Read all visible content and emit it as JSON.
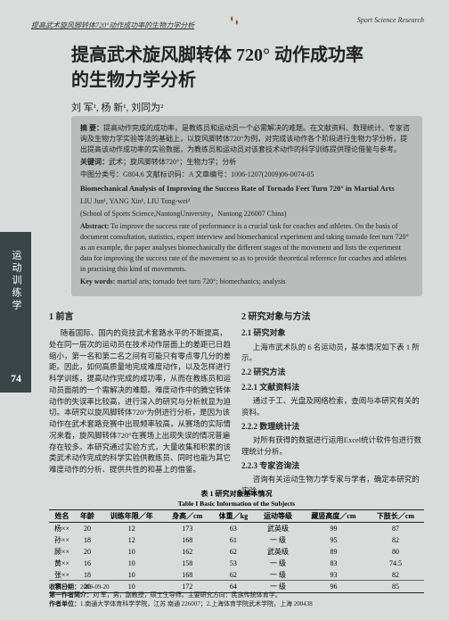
{
  "header": {
    "left": "提高武术旋风脚转体720°动作成功率的生物力学分析",
    "right": "Sport Science Research"
  },
  "title": {
    "line1": "提高武术旋风脚转体 720° 动作成功率",
    "line2": "的生物力学分析"
  },
  "authors": "刘  军¹, 杨  新¹, 刘同为²",
  "abstract": {
    "cn_label": "摘  要：",
    "cn_body": "提高动作完成的成功率，是教练员和运动员一个必需解决的难题。在文献资料、数理统计、专家咨询及生物力学实验等法的基础上，以旋风脚转体720°为例，对完成该动作各个阶段进行生物力学分析，提出提高该动作成功率的实验数据，为教练员和运动员对该套技术动作的科学训练提供理论借鉴与参考。",
    "kw_cn_label": "关键词：",
    "kw_cn_body": "武术；旋风脚转体720°；生物力学；分析",
    "class_label": "中图分类号：",
    "class_body": "G804.6      文献标识码：A      文章编号：1006-1207(2009)06-0074-05",
    "en_title": "Biomechanical Analysis of Improving the Success Rate of Tornado Feet Turn 720° in Martial Arts",
    "en_authors": "LIU Jun¹, YANG Xin¹, LIU Tong-wei²",
    "en_affil": "(School of Sports Science,NantongUniversity，Nantong 226007 China)",
    "en_abs_label": "Abstract:",
    "en_abs_body": "To improve the success rate of performance is a crucial task for coaches and athletes. On the basis of document consultation, statistics, expert interview and biomechanical experiment and taking tornado feet turn 720° as an example, the paper analyses biomechanically the different stages of the movement and lists the experiment data for improving the success rate of the movement so as to provide theoretical reference for coaches and athletes in practising this kind of movements.",
    "en_kw_label": "Key words:",
    "en_kw_body": "martial arts; tornado feet turn 720°; biomechanics; analysis"
  },
  "sidebar": "运动训练学",
  "page_number": "74",
  "sections": {
    "s1_h": "1  前言",
    "s1_p1": "随着国际、国内的竞技武术套路水平的不断提高，处在同一层次的运动员在技术动作层面上的差距已日趋缩小，第一名和第二名之间有可能只有零点零几分的差距。因此，如何高质量地完成难度动作，以及怎样进行科学训练，提高动作完成的成功率，从而在教练员和运动员面前的一个需解决的难题。难度动作中的腾空转体动作的失误率比较高，进行深入的研究与分析就显为迫切。本研究以旋风脚转体720°为例进行分析，是因为该动作在武术套路竞赛中出现频率较高，从赛场的实际情况来看，旋风脚转体720°在赛场上出现失误的情况普遍存在较多。本研究通过实验方式，大量收集和积累的该类武术动作完成的科学实验供教练员、同时也能为其它难度动作的分析、提供共性的和基上的借鉴。",
    "s2_h": "2  研究对象与方法",
    "s21_h": "2.1  研究对象",
    "s21_p": "上海市武术队的 6 名运动员，基本情况如下表 1 所示。",
    "s22_h": "2.2  研究方法",
    "s221_h": "2.2.1  文献资料法",
    "s221_p": "通过于工、光盘及网络检索，查阅与本研究有关的资料。",
    "s222_h": "2.2.2  数理统计法",
    "s222_p": "对所有获得的数据进行运用Excel统计软件包进行数理统计分析。",
    "s223_h": "2.2.3  专家咨询法",
    "s223_p": "咨询有关运动生物力学专家与学者，确定本研究的实验"
  },
  "table": {
    "caption_cn": "表 1  研究对象基本情况",
    "caption_en": "Table I   Basic Information of the Subjects",
    "headers": [
      "姓名",
      "年龄",
      "训练年限／年",
      "身高／cm",
      "体重／kg",
      "运动等级",
      "藏竖高度／cm",
      "下肢长／cm"
    ],
    "rows": [
      [
        "杨××",
        "20",
        "12",
        "173",
        "63",
        "武英级",
        "99",
        "87"
      ],
      [
        "孙××",
        "18",
        "12",
        "168",
        "61",
        "一  级",
        "95",
        "82"
      ],
      [
        "顾××",
        "20",
        "10",
        "162",
        "62",
        "武英级",
        "89",
        "80"
      ],
      [
        "黄××",
        "16",
        "10",
        "158",
        "53",
        "一  级",
        "83",
        "74.5"
      ],
      [
        "张××",
        "18",
        "10",
        "168",
        "62",
        "一  级",
        "93",
        "82"
      ],
      [
        "李××",
        "20",
        "10",
        "172",
        "64",
        "一  级",
        "96",
        "85"
      ]
    ]
  },
  "footer": {
    "recv_label": "收稿日期：",
    "recv": "2009-09-20",
    "author_label": "第一作者简介：",
    "author": "刘  军，男，副教授，硕士生导师。主要研究方向：民族传统体育学。",
    "affil_label": "作者单位：",
    "affil": "1.南通大学体育科学学院，江苏 南通 226007；2.上海体育学院武术学院，上海 200438"
  }
}
